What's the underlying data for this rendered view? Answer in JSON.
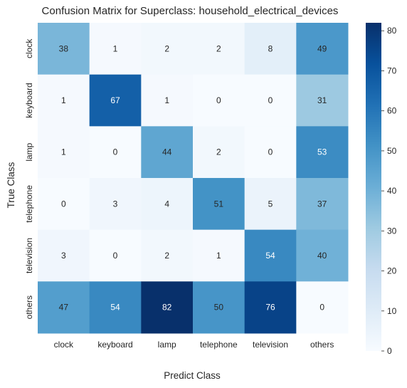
{
  "chart_data": {
    "type": "heatmap",
    "title": "Confusion Matrix for Superclass: household_electrical_devices",
    "xlabel": "Predict Class",
    "ylabel": "True Class",
    "x_categories": [
      "clock",
      "keyboard",
      "lamp",
      "telephone",
      "television",
      "others"
    ],
    "y_categories": [
      "clock",
      "keyboard",
      "lamp",
      "telephone",
      "television",
      "others"
    ],
    "values": [
      [
        38,
        1,
        2,
        2,
        8,
        49
      ],
      [
        1,
        67,
        1,
        0,
        0,
        31
      ],
      [
        1,
        0,
        44,
        2,
        0,
        53
      ],
      [
        0,
        3,
        4,
        51,
        5,
        37
      ],
      [
        3,
        0,
        2,
        1,
        54,
        40
      ],
      [
        47,
        54,
        82,
        50,
        76,
        0
      ]
    ],
    "colormap": "Blues",
    "vmin": 0,
    "vmax": 82,
    "colorbar_ticks": [
      0,
      10,
      20,
      30,
      40,
      50,
      60,
      70,
      80
    ]
  }
}
